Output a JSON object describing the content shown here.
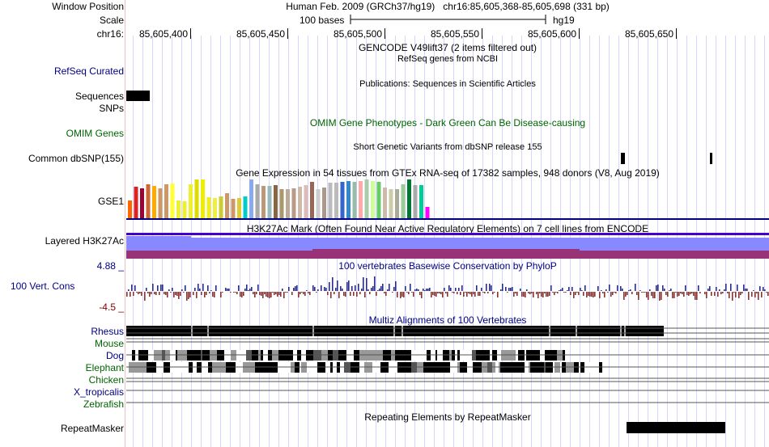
{
  "header": {
    "window_position_label": "Window Position",
    "scale_label": "Scale",
    "chrom_label": "chr16:",
    "position_text": "Human Feb. 2009 (GRCh37/hg19)   chr16:85,605,368-85,605,698 (331 bp)",
    "scale_text": "100 bases",
    "scale_assembly": "hg19",
    "ruler_ticks": [
      "85,605,400",
      "85,605,450",
      "85,605,500",
      "85,605,550",
      "85,605,600",
      "85,605,650"
    ]
  },
  "tracks": {
    "gencode": {
      "title": "GENCODE V49lift37 (2 items filtered out)"
    },
    "refseq": {
      "label": "RefSeq Curated",
      "title": "RefSeq genes from NCBI",
      "color": "#000080"
    },
    "sequences": {
      "label": "Sequences",
      "title": "Publications: Sequences in Scientific Articles"
    },
    "snps": {
      "label": "SNPs"
    },
    "omim": {
      "label": "OMIM Genes",
      "title": "OMIM Gene Phenotypes - Dark Green Can Be Disease-causing",
      "color": "#006400"
    },
    "common_dbsnp": {
      "label": "Common dbSNP(155)",
      "title": "Short Genetic Variants from dbSNP release 155"
    },
    "gtex": {
      "label": "GSE1",
      "title": "Gene Expression in 54 tissues from GTEx RNA-seq of 17382 samples, 948 donors (V8, Aug 2019)",
      "bar_colors": [
        "#ff6600",
        "#dd2222",
        "#990033",
        "#cc6633",
        "#ffaa00",
        "#cc9966",
        "#cc9966",
        "#ffff33",
        "#eeee33",
        "#eeee33",
        "#eeee33",
        "#dddd00",
        "#eeee00",
        "#eeee22",
        "#eeee44",
        "#cccc33",
        "#cc9966",
        "#cc9966",
        "#ddcc33",
        "#00cccc",
        "#88aaee",
        "#aaaaaa",
        "#bb9977",
        "#99bbbb",
        "#886644",
        "#aa9966",
        "#bbaa99",
        "#bb9988",
        "#ccbbaa",
        "#ddbbbb",
        "#996655",
        "#cccccc",
        "#aa9988",
        "#bbbbbb",
        "#bbbbbb",
        "#3366cc",
        "#3388cc",
        "#99bbaa",
        "#ffaaaa",
        "#aaccaa",
        "#ccff99",
        "#66cc66",
        "#ccbbaa",
        "#ccccaa",
        "#aaaa99",
        "#99cc99",
        "#007733",
        "#aaaaaa",
        "#00cc99",
        "#ff00ff"
      ],
      "bar_values": [
        0.46,
        0.81,
        0.78,
        0.87,
        0.83,
        0.78,
        0.87,
        0.9,
        0.46,
        0.43,
        0.87,
        1.0,
        1.0,
        0.54,
        0.52,
        0.56,
        0.65,
        0.51,
        0.52,
        0.57,
        1.0,
        0.87,
        0.83,
        0.84,
        0.85,
        0.76,
        0.76,
        0.78,
        0.81,
        0.86,
        0.94,
        0.74,
        0.8,
        0.92,
        0.92,
        0.94,
        0.96,
        0.94,
        0.96,
        1.0,
        0.96,
        0.94,
        0.79,
        0.76,
        0.76,
        0.87,
        1.0,
        0.86,
        0.86,
        0.3
      ]
    },
    "h3k27ac": {
      "label": "Layered H3K27Ac",
      "title": "H3K27Ac Mark (Often Found Near Active Regulatory Elements) on 7 cell lines from ENCODE",
      "colors": [
        "#4400cc",
        "#8888ff",
        "#993377"
      ]
    },
    "phylop": {
      "label": "100 Vert. Cons",
      "title": "100 vertebrates Basewise Conservation by PhyloP",
      "y_max": "4.88 _",
      "y_min": "-4.5 _",
      "pos_color": "#2a2a8a",
      "neg_color": "#883333"
    },
    "multiz": {
      "title": "Multiz Alignments of 100 Vertebrates",
      "species": [
        {
          "name": "Rhesus",
          "color": "#000080"
        },
        {
          "name": "Mouse",
          "color": "#006400"
        },
        {
          "name": "Dog",
          "color": "#000080"
        },
        {
          "name": "Elephant",
          "color": "#006400"
        },
        {
          "name": "Chicken",
          "color": "#006400"
        },
        {
          "name": "X_tropicalis",
          "color": "#000080"
        },
        {
          "name": "Zebrafish",
          "color": "#006400"
        }
      ]
    },
    "repeatmasker": {
      "label": "RepeatMasker",
      "title": "Repeating Elements by RepeatMasker"
    }
  }
}
